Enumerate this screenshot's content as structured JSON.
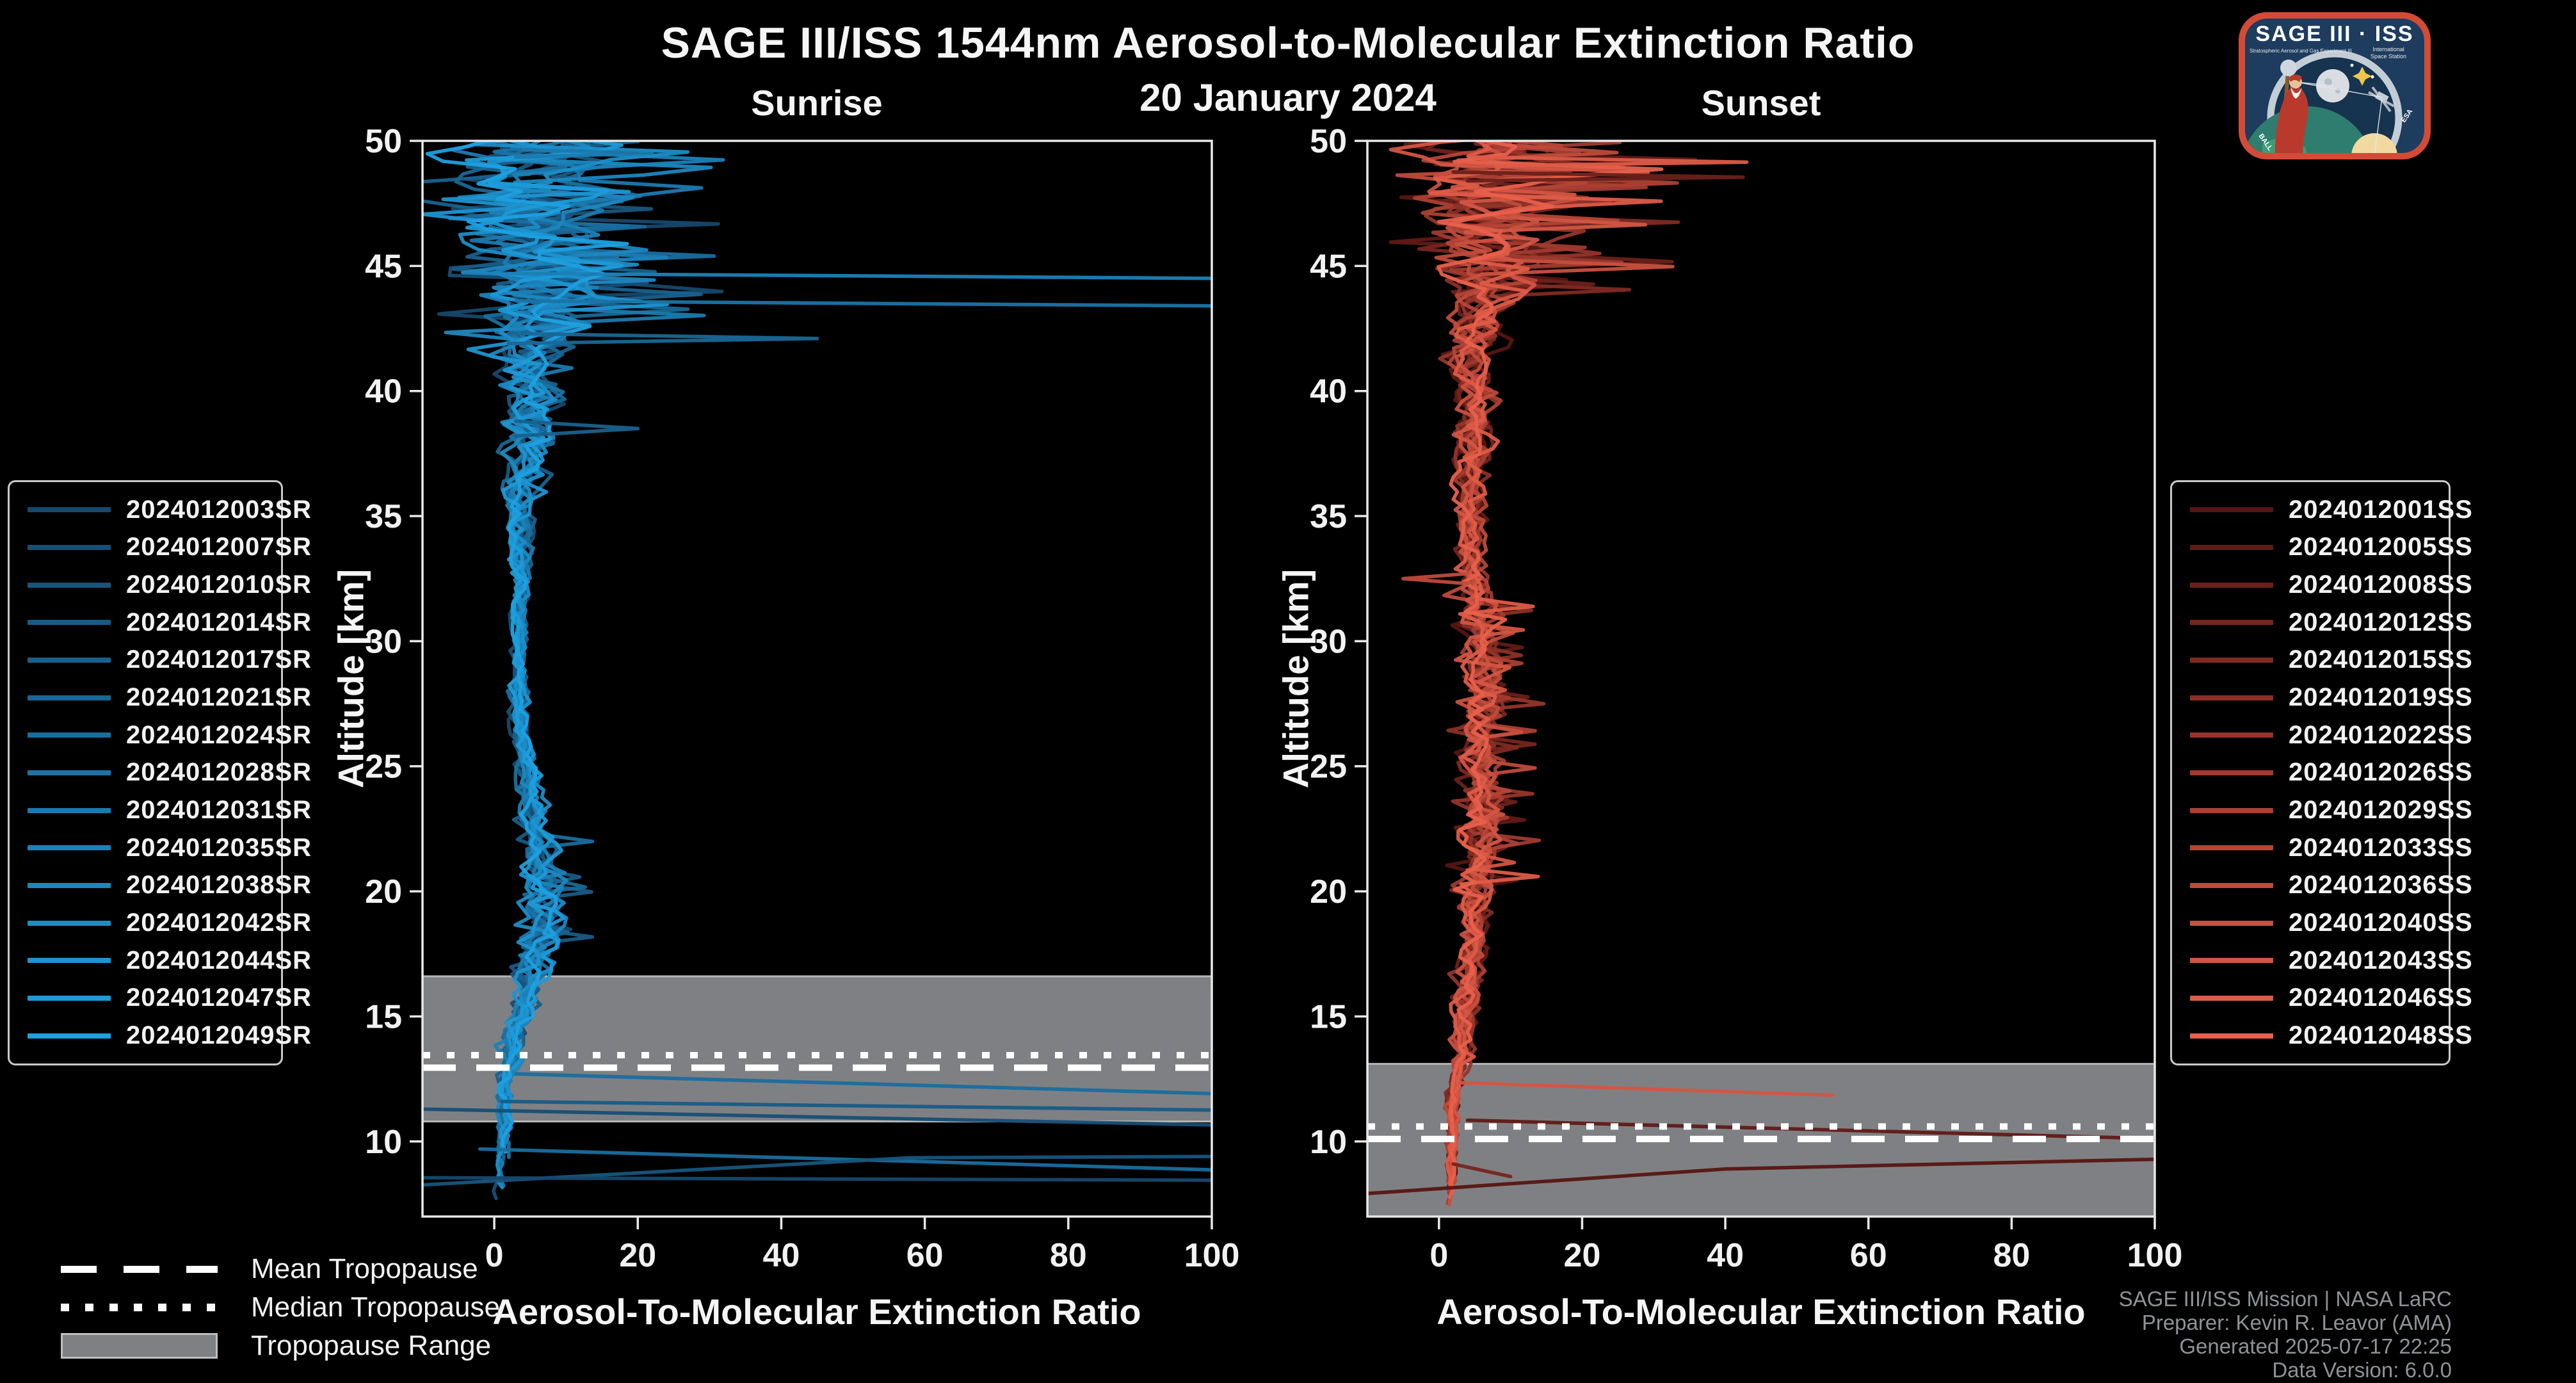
{
  "header": {
    "title": "SAGE III/ISS 1544nm Aerosol-to-Molecular Extinction Ratio",
    "date": "20 January 2024"
  },
  "tropopause_legend": {
    "mean": "Mean Tropopause",
    "median": "Median Tropopause",
    "range": "Tropopause Range"
  },
  "attribution": [
    "SAGE III/ISS Mission | NASA LaRC",
    "Preparer: Kevin R. Leavor (AMA)",
    "Generated 2025-07-17 22:25",
    "Data Version: 6.0.0"
  ],
  "logo": {
    "mission": "SAGE III · ISS",
    "left_sub": "Stratospheric Aerosol and Gas Experiment III",
    "right_sub_1": "International",
    "right_sub_2": "Space Station",
    "ring_left": "BALL",
    "ring_right": "ESA"
  },
  "colors": {
    "background": "#000000",
    "frame": "#e8e8e8",
    "text": "#f2f2f2",
    "muted_text": "#8f9296",
    "tropopause_band": "#7f8084",
    "tropopause_band_edge": "#b5b5b5",
    "tropopause_lines": "#ffffff",
    "sunrise_dark": "#16486d",
    "sunrise_light": "#1ea0e0",
    "sunset_dark": "#571512",
    "sunset_light": "#e8604b",
    "logo_red": "#d34b36",
    "logo_navy": "#1d3c5e"
  },
  "chart_data": [
    {
      "type": "line",
      "id": "sunrise",
      "title": "Sunrise",
      "xlabel": "Aerosol-To-Molecular Extinction Ratio",
      "ylabel": "Altitude [km]",
      "xlim": [
        -10,
        100
      ],
      "ylim": [
        7,
        50
      ],
      "x_ticks": [
        0,
        20,
        40,
        60,
        80,
        100
      ],
      "y_ticks": [
        10,
        15,
        20,
        25,
        30,
        35,
        40,
        45,
        50
      ],
      "grid": false,
      "legend_position": "outside-left",
      "series": [
        "2024012003SR",
        "2024012007SR",
        "2024012010SR",
        "2024012014SR",
        "2024012017SR",
        "2024012021SR",
        "2024012024SR",
        "2024012028SR",
        "2024012031SR",
        "2024012035SR",
        "2024012038SR",
        "2024012042SR",
        "2024012044SR",
        "2024012047SR",
        "2024012049SR"
      ],
      "tropopause": {
        "mean_km": 12.95,
        "median_km": 13.45,
        "range_km": [
          10.8,
          16.6
        ]
      },
      "mean_profile": [
        [
          7.5,
          1.0
        ],
        [
          10,
          1.2
        ],
        [
          12,
          1.6
        ],
        [
          14,
          2.6
        ],
        [
          16,
          4.5
        ],
        [
          18,
          6.5
        ],
        [
          19.5,
          7.5
        ],
        [
          21,
          6.5
        ],
        [
          23,
          5.0
        ],
        [
          26,
          4.0
        ],
        [
          30,
          3.5
        ],
        [
          34,
          3.6
        ],
        [
          37,
          4.2
        ],
        [
          40,
          5.0
        ],
        [
          43,
          6.0
        ],
        [
          46,
          6.0
        ],
        [
          48,
          5.0
        ],
        [
          50,
          6.0
        ]
      ],
      "spread_profile": [
        [
          7.5,
          0.6
        ],
        [
          12,
          0.8
        ],
        [
          14,
          1.2
        ],
        [
          16,
          1.6
        ],
        [
          19.5,
          2.4
        ],
        [
          23,
          1.5
        ],
        [
          26,
          1.1
        ],
        [
          30,
          0.9
        ],
        [
          34,
          1.2
        ],
        [
          37,
          2.2
        ],
        [
          40,
          3.8
        ],
        [
          43,
          5.5
        ],
        [
          46,
          8.0
        ],
        [
          48,
          9.5
        ],
        [
          50,
          10.0
        ]
      ],
      "spike_zones": [
        {
          "range": [
            42,
            50
          ],
          "prob": 0.1,
          "min": 6,
          "max": 28
        },
        {
          "range": [
            17,
            22
          ],
          "prob": 0.06,
          "min": 3,
          "max": 8
        }
      ],
      "bottom_alt": [
        7.4,
        4.5
      ],
      "seed": 11,
      "excursions": [
        {
          "line": 9,
          "points": [
            [
              2,
              44.7
            ],
            [
              102,
              44.5
            ]
          ]
        },
        {
          "line": 7,
          "points": [
            [
              3,
              43.6
            ],
            [
              102,
              43.4
            ]
          ]
        },
        {
          "line": 5,
          "points": [
            [
              2,
              42.3
            ],
            [
              45,
              42.1
            ],
            [
              2,
              41.9
            ]
          ]
        },
        {
          "line": 8,
          "points": [
            [
              4,
              49.65
            ],
            [
              22,
              49.5
            ],
            [
              3,
              49.35
            ]
          ]
        },
        {
          "line": 4,
          "points": [
            [
              3,
              38.8
            ],
            [
              20,
              38.5
            ],
            [
              3,
              38.2
            ]
          ]
        },
        {
          "line": 6,
          "points": [
            [
              3,
              12.7
            ],
            [
              102,
              11.9
            ]
          ]
        },
        {
          "line": 3,
          "points": [
            [
              1,
              11.6
            ],
            [
              102,
              11.25
            ]
          ]
        },
        {
          "line": 1,
          "points": [
            [
              -11,
              11.3
            ],
            [
              102,
              10.65
            ]
          ]
        },
        {
          "line": 6,
          "points": [
            [
              -2,
              9.7
            ],
            [
              102,
              8.85
            ]
          ]
        },
        {
          "line": 2,
          "points": [
            [
              -11,
              8.25
            ],
            [
              58,
              9.35
            ],
            [
              102,
              9.4
            ]
          ]
        },
        {
          "line": 0,
          "points": [
            [
              -11,
              8.55
            ],
            [
              102,
              8.45
            ]
          ]
        }
      ]
    },
    {
      "type": "line",
      "id": "sunset",
      "title": "Sunset",
      "xlabel": "Aerosol-To-Molecular Extinction Ratio",
      "ylabel": "Altitude [km]",
      "xlim": [
        -10,
        100
      ],
      "ylim": [
        7,
        50
      ],
      "x_ticks": [
        0,
        20,
        40,
        60,
        80,
        100
      ],
      "y_ticks": [
        10,
        15,
        20,
        25,
        30,
        35,
        40,
        45,
        50
      ],
      "grid": false,
      "legend_position": "outside-right",
      "series": [
        "2024012001SS",
        "2024012005SS",
        "2024012008SS",
        "2024012012SS",
        "2024012015SS",
        "2024012019SS",
        "2024012022SS",
        "2024012026SS",
        "2024012029SS",
        "2024012033SS",
        "2024012036SS",
        "2024012040SS",
        "2024012043SS",
        "2024012046SS",
        "2024012048SS"
      ],
      "tropopause": {
        "mean_km": 10.1,
        "median_km": 10.6,
        "range_km": [
          7,
          13.1
        ]
      },
      "mean_profile": [
        [
          7.3,
          1.4
        ],
        [
          10,
          1.8
        ],
        [
          12,
          2.2
        ],
        [
          13.5,
          3.2
        ],
        [
          15,
          3.6
        ],
        [
          17,
          4.4
        ],
        [
          19,
          5.0
        ],
        [
          22,
          5.6
        ],
        [
          25,
          6.0
        ],
        [
          28,
          6.0
        ],
        [
          31,
          5.4
        ],
        [
          33,
          4.6
        ],
        [
          35,
          4.5
        ],
        [
          37,
          4.6
        ],
        [
          39,
          5.0
        ],
        [
          41,
          4.6
        ],
        [
          43,
          5.2
        ],
        [
          45,
          6.5
        ],
        [
          47,
          7.5
        ],
        [
          48.5,
          8.0
        ],
        [
          50,
          8.5
        ]
      ],
      "spread_profile": [
        [
          7.3,
          0.5
        ],
        [
          10,
          0.6
        ],
        [
          12,
          0.8
        ],
        [
          13.5,
          1.2
        ],
        [
          15,
          1.4
        ],
        [
          17,
          1.6
        ],
        [
          19,
          1.8
        ],
        [
          22,
          2.2
        ],
        [
          25,
          2.4
        ],
        [
          28,
          2.4
        ],
        [
          31,
          2.2
        ],
        [
          33,
          1.7
        ],
        [
          35,
          1.5
        ],
        [
          37,
          1.8
        ],
        [
          39,
          2.2
        ],
        [
          41,
          2.5
        ],
        [
          43,
          3.0
        ],
        [
          45,
          5.0
        ],
        [
          47,
          7.0
        ],
        [
          48.5,
          8.0
        ],
        [
          50,
          8.5
        ]
      ],
      "spike_zones": [
        {
          "range": [
            44,
            50
          ],
          "prob": 0.12,
          "min": 6,
          "max": 28
        },
        {
          "range": [
            20,
            32
          ],
          "prob": 0.06,
          "min": 3,
          "max": 9
        }
      ],
      "bottom_alt": [
        7.3,
        1.5
      ],
      "seed": 77,
      "excursions": [
        {
          "line": 13,
          "points": [
            [
              5,
              49.35
            ],
            [
              43,
              49.15
            ],
            [
              8,
              49.0
            ]
          ]
        },
        {
          "line": 2,
          "points": [
            [
              2,
              48.75
            ],
            [
              42.5,
              48.55
            ],
            [
              4,
              48.4
            ]
          ]
        },
        {
          "line": 10,
          "points": [
            [
              4,
              32.7
            ],
            [
              -5,
              32.5
            ],
            [
              4,
              32.3
            ]
          ]
        },
        {
          "line": 12,
          "points": [
            [
              3,
              12.35
            ],
            [
              55,
              11.85
            ]
          ]
        },
        {
          "line": 1,
          "points": [
            [
              4,
              10.85
            ],
            [
              102,
              10.1
            ]
          ]
        },
        {
          "line": 0,
          "points": [
            [
              -11,
              7.9
            ],
            [
              40,
              8.9
            ],
            [
              102,
              9.3
            ]
          ]
        },
        {
          "line": 3,
          "points": [
            [
              2,
              9.1
            ],
            [
              10,
              8.6
            ]
          ]
        }
      ]
    }
  ]
}
